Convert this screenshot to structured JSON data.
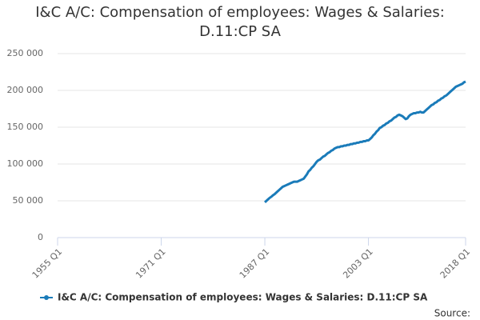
{
  "chart_data": {
    "type": "line",
    "title": "I&C A/C: Compensation of employees: Wages & Salaries: D.11:CP SA",
    "source_label": "Source:",
    "categories": [
      "1955 Q1",
      null,
      null,
      null,
      null,
      null,
      null,
      null,
      null,
      null,
      null,
      null,
      null,
      null,
      null,
      null,
      null,
      null,
      null,
      null,
      null,
      null,
      null,
      null,
      null,
      null,
      null,
      null,
      null,
      null,
      null,
      null,
      null,
      null,
      null,
      null,
      null,
      null,
      null,
      null,
      null,
      null,
      null,
      null,
      null,
      null,
      null,
      null,
      null,
      null,
      null,
      null,
      null,
      null,
      null,
      null,
      null,
      null,
      null,
      null,
      null,
      null,
      null,
      null,
      "1971 Q1",
      null,
      null,
      null,
      null,
      null,
      null,
      null,
      null,
      null,
      null,
      null,
      null,
      null,
      null,
      null,
      null,
      null,
      null,
      null,
      null,
      null,
      null,
      null,
      null,
      null,
      null,
      null,
      null,
      null,
      null,
      null,
      null,
      null,
      null,
      null,
      null,
      null,
      null,
      null,
      null,
      null,
      null,
      null,
      null,
      null,
      null,
      null,
      null,
      null,
      null,
      null,
      null,
      null,
      null,
      null,
      null,
      null,
      null,
      null,
      null,
      null,
      null,
      null,
      "1987 Q1",
      null,
      null,
      null,
      null,
      null,
      null,
      null,
      null,
      null,
      null,
      null,
      null,
      null,
      null,
      null,
      null,
      null,
      null,
      null,
      null,
      null,
      null,
      null,
      null,
      null,
      null,
      null,
      null,
      null,
      null,
      null,
      null,
      null,
      null,
      null,
      null,
      null,
      null,
      null,
      null,
      null,
      null,
      null,
      null,
      null,
      null,
      null,
      null,
      null,
      null,
      null,
      null,
      null,
      null,
      null,
      null,
      null,
      null,
      null,
      null,
      null,
      null,
      null,
      "2003 Q1",
      null,
      null,
      null,
      null,
      null,
      null,
      null,
      null,
      null,
      null,
      null,
      null,
      null,
      null,
      null,
      null,
      null,
      null,
      null,
      null,
      null,
      null,
      null,
      null,
      null,
      null,
      null,
      null,
      null,
      null,
      null,
      null,
      null,
      null,
      null,
      null,
      null,
      null,
      null,
      null,
      null,
      null,
      null,
      null,
      null,
      null,
      null,
      null,
      null,
      null,
      null,
      null,
      null,
      null,
      null,
      null,
      null,
      null,
      null,
      "2018 Q1"
    ],
    "series": [
      {
        "name": "I&C A/C: Compensation of employees: Wages & Salaries: D.11:CP SA",
        "color": "#1a7bb9",
        "values": [
          null,
          null,
          null,
          null,
          null,
          null,
          null,
          null,
          null,
          null,
          null,
          null,
          null,
          null,
          null,
          null,
          null,
          null,
          null,
          null,
          null,
          null,
          null,
          null,
          null,
          null,
          null,
          null,
          null,
          null,
          null,
          null,
          null,
          null,
          null,
          null,
          null,
          null,
          null,
          null,
          null,
          null,
          null,
          null,
          null,
          null,
          null,
          null,
          null,
          null,
          null,
          null,
          null,
          null,
          null,
          null,
          null,
          null,
          null,
          null,
          null,
          null,
          null,
          null,
          null,
          null,
          null,
          null,
          null,
          null,
          null,
          null,
          null,
          null,
          null,
          null,
          null,
          null,
          null,
          null,
          null,
          null,
          null,
          null,
          null,
          null,
          null,
          null,
          null,
          null,
          null,
          null,
          null,
          null,
          null,
          null,
          null,
          null,
          null,
          null,
          null,
          null,
          null,
          null,
          null,
          null,
          null,
          null,
          null,
          null,
          null,
          null,
          null,
          null,
          null,
          null,
          null,
          null,
          null,
          null,
          null,
          null,
          null,
          null,
          null,
          null,
          null,
          null,
          48000,
          50000,
          52000,
          54000,
          55500,
          57500,
          59000,
          61000,
          63000,
          65000,
          67000,
          69000,
          70000,
          71000,
          72000,
          73000,
          74000,
          75000,
          76000,
          76000,
          76000,
          77000,
          78000,
          79000,
          80000,
          83000,
          86000,
          90000,
          92000,
          95000,
          97000,
          100000,
          103000,
          105000,
          106000,
          108000,
          110000,
          111000,
          113000,
          115000,
          116000,
          118000,
          119000,
          121000,
          122000,
          123000,
          123000,
          124000,
          124000,
          125000,
          125000,
          126000,
          126000,
          127000,
          127000,
          128000,
          128000,
          129000,
          129000,
          130000,
          130000,
          131000,
          131000,
          132000,
          132000,
          134000,
          136000,
          139000,
          141000,
          144000,
          146000,
          149000,
          150000,
          152000,
          153000,
          155000,
          156000,
          158000,
          159000,
          161000,
          163000,
          164000,
          166000,
          167000,
          166000,
          165000,
          163000,
          161000,
          162000,
          165000,
          167000,
          168000,
          169000,
          169000,
          170000,
          170000,
          171000,
          170000,
          170000,
          172000,
          174000,
          176000,
          178000,
          180000,
          181000,
          183000,
          184000,
          186000,
          187000,
          189000,
          190000,
          192000,
          193000,
          195000,
          197000,
          199000,
          201000,
          203000,
          205000,
          206000,
          207000,
          208000,
          209000,
          211000,
          212000
        ]
      }
    ],
    "ylim": [
      0,
      250000
    ],
    "yticks": [
      0,
      {
        "value": 50000,
        "label": "50 000"
      },
      {
        "value": 100000,
        "label": "100 000"
      },
      {
        "value": 150000,
        "label": "150 000"
      },
      {
        "value": 200000,
        "label": "200 000"
      },
      {
        "value": 250000,
        "label": "250 000"
      }
    ],
    "grid": true
  }
}
